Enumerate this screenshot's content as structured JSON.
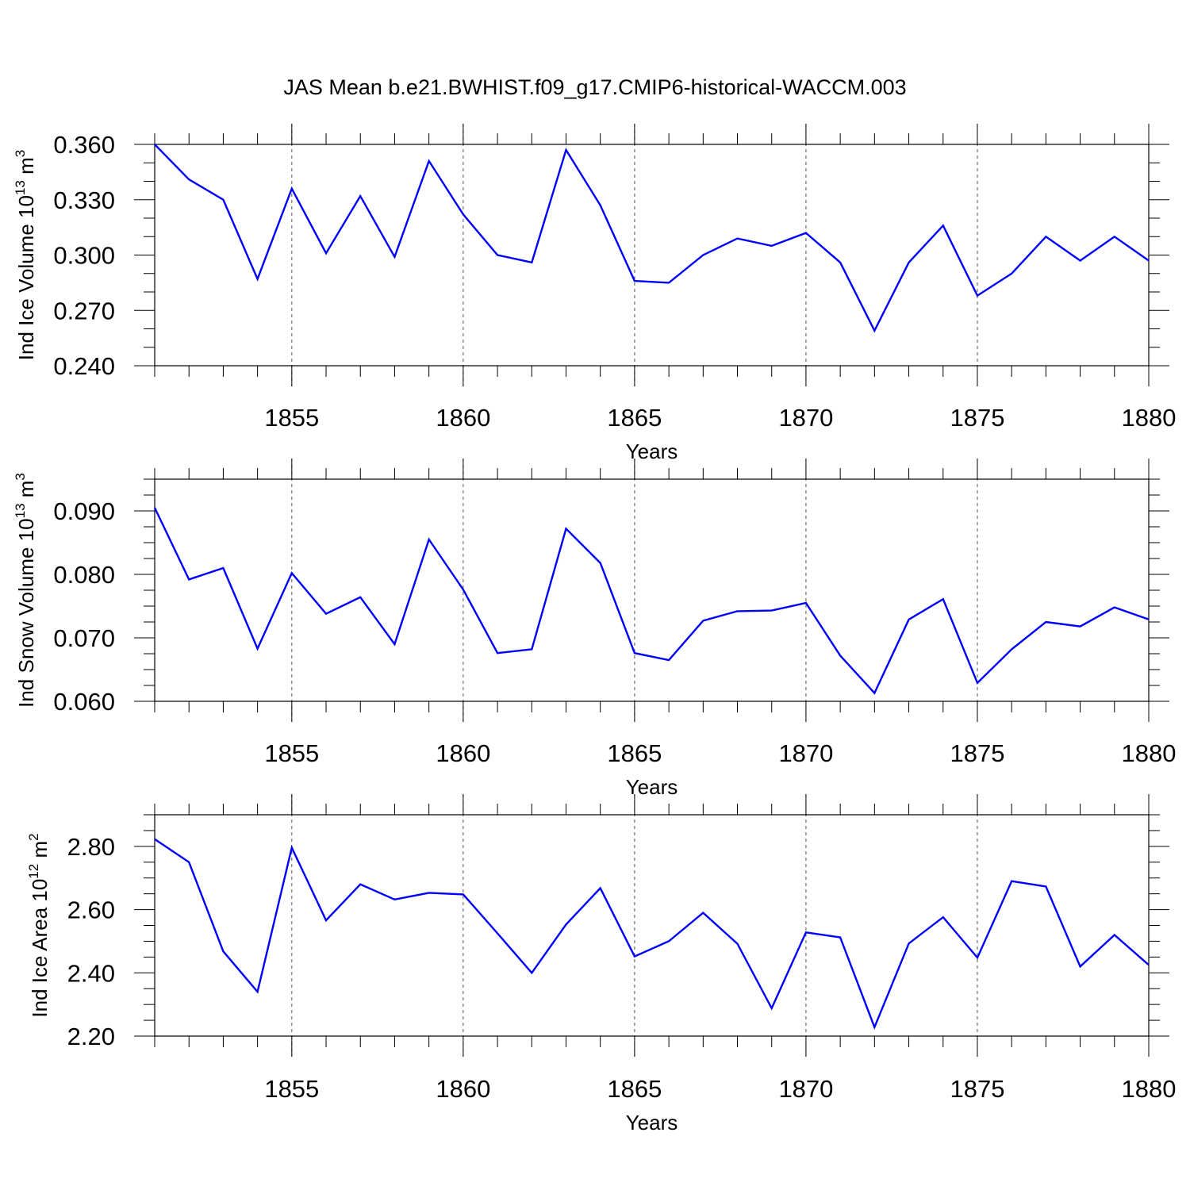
{
  "title": "JAS Mean b.e21.BWHIST.f09_g17.CMIP6-historical-WACCM.003",
  "line_color": "#0000ff",
  "chart_data": [
    {
      "type": "line",
      "xlabel": "Years",
      "ylabel": {
        "text": "Ind Ice Volume 10",
        "sup": "13",
        "unit": " m",
        "unit_sup": "3"
      },
      "x": [
        1851,
        1852,
        1853,
        1854,
        1855,
        1856,
        1857,
        1858,
        1859,
        1860,
        1861,
        1862,
        1863,
        1864,
        1865,
        1866,
        1867,
        1868,
        1869,
        1870,
        1871,
        1872,
        1873,
        1874,
        1875,
        1876,
        1877,
        1878,
        1879,
        1880
      ],
      "y": [
        0.36,
        0.341,
        0.33,
        0.287,
        0.336,
        0.301,
        0.332,
        0.299,
        0.351,
        0.322,
        0.3,
        0.296,
        0.357,
        0.327,
        0.286,
        0.285,
        0.3,
        0.309,
        0.305,
        0.312,
        0.296,
        0.259,
        0.296,
        0.316,
        0.278,
        0.29,
        0.31,
        0.297,
        0.31,
        0.297
      ],
      "xlim": [
        1851,
        1880
      ],
      "ylim": [
        0.24,
        0.36
      ],
      "yticks": [
        "0.240",
        "0.270",
        "0.300",
        "0.330",
        "0.360"
      ],
      "xticks": [
        "1855",
        "1860",
        "1865",
        "1870",
        "1875",
        "1880"
      ]
    },
    {
      "type": "line",
      "xlabel": "Years",
      "ylabel": {
        "text": "Ind Snow Volume 10",
        "sup": "13",
        "unit": " m",
        "unit_sup": "3"
      },
      "x": [
        1851,
        1852,
        1853,
        1854,
        1855,
        1856,
        1857,
        1858,
        1859,
        1860,
        1861,
        1862,
        1863,
        1864,
        1865,
        1866,
        1867,
        1868,
        1869,
        1870,
        1871,
        1872,
        1873,
        1874,
        1875,
        1876,
        1877,
        1878,
        1879,
        1880
      ],
      "y": [
        0.0905,
        0.0792,
        0.081,
        0.0683,
        0.0802,
        0.0738,
        0.0764,
        0.069,
        0.0855,
        0.0776,
        0.0676,
        0.0682,
        0.0872,
        0.0818,
        0.0676,
        0.0665,
        0.0727,
        0.0742,
        0.0743,
        0.0755,
        0.0672,
        0.0613,
        0.0729,
        0.0761,
        0.0629,
        0.0682,
        0.0725,
        0.0718,
        0.0748,
        0.0729
      ],
      "xlim": [
        1851,
        1880
      ],
      "ylim": [
        0.06,
        0.095
      ],
      "yticks": [
        "0.060",
        "0.070",
        "0.080",
        "0.090"
      ],
      "xticks": [
        "1855",
        "1860",
        "1865",
        "1870",
        "1875",
        "1880"
      ]
    },
    {
      "type": "line",
      "xlabel": "Years",
      "ylabel": {
        "text": "Ind Ice Area 10",
        "sup": "12",
        "unit": " m",
        "unit_sup": "2"
      },
      "x": [
        1851,
        1852,
        1853,
        1854,
        1855,
        1856,
        1857,
        1858,
        1859,
        1860,
        1861,
        1862,
        1863,
        1864,
        1865,
        1866,
        1867,
        1868,
        1869,
        1870,
        1871,
        1872,
        1873,
        1874,
        1875,
        1876,
        1877,
        1878,
        1879,
        1880
      ],
      "y": [
        2.823,
        2.75,
        2.468,
        2.34,
        2.796,
        2.566,
        2.68,
        2.632,
        2.653,
        2.648,
        2.525,
        2.4,
        2.553,
        2.668,
        2.452,
        2.5,
        2.59,
        2.492,
        2.288,
        2.528,
        2.512,
        2.228,
        2.493,
        2.576,
        2.448,
        2.69,
        2.673,
        2.42,
        2.52,
        2.425
      ],
      "xlim": [
        1851,
        1880
      ],
      "ylim": [
        2.2,
        2.9
      ],
      "yticks": [
        "2.20",
        "2.40",
        "2.60",
        "2.80"
      ],
      "xticks": [
        "1855",
        "1860",
        "1865",
        "1870",
        "1875",
        "1880"
      ]
    }
  ]
}
